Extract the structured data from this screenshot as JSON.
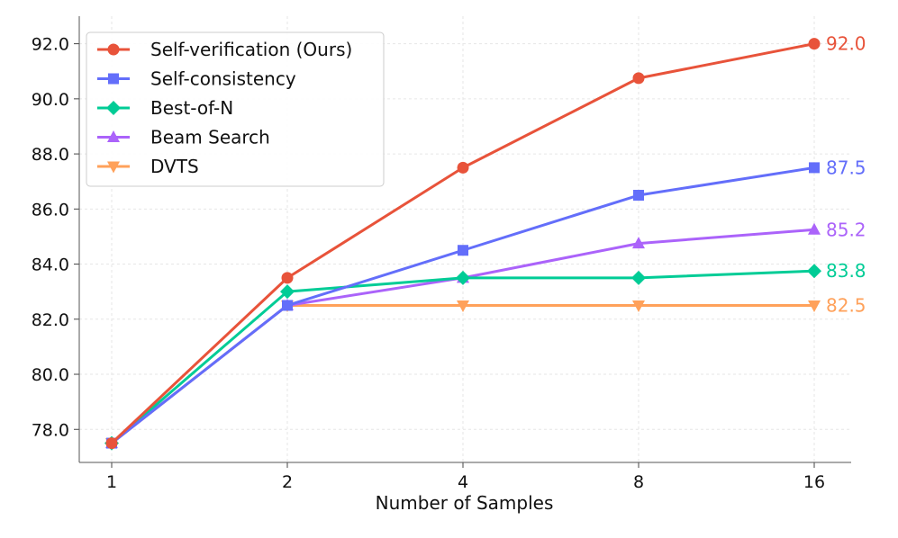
{
  "chart_data": {
    "type": "line",
    "title": "",
    "xlabel": "Number of Samples",
    "ylabel": "",
    "categories": [
      "1",
      "2",
      "4",
      "8",
      "16"
    ],
    "ylim": [
      76.8,
      93.0
    ],
    "yticks": [
      78.0,
      80.0,
      82.0,
      84.0,
      86.0,
      88.0,
      90.0,
      92.0
    ],
    "ytick_labels": [
      "78.0",
      "80.0",
      "82.0",
      "84.0",
      "86.0",
      "88.0",
      "90.0",
      "92.0"
    ],
    "grid": true,
    "legend_position": "top-left",
    "series": [
      {
        "name": "Self-verification (Ours)",
        "color": "#E8533A",
        "marker": "circle",
        "values": [
          77.5,
          83.5,
          87.5,
          90.75,
          92.0
        ],
        "end_label": "92.0"
      },
      {
        "name": "Self-consistency",
        "color": "#636EFA",
        "marker": "square",
        "values": [
          77.5,
          82.5,
          84.5,
          86.5,
          87.5
        ],
        "end_label": "87.5"
      },
      {
        "name": "Best-of-N",
        "color": "#00CC96",
        "marker": "diamond",
        "values": [
          77.5,
          83.0,
          83.5,
          83.5,
          83.75
        ],
        "end_label": "83.8"
      },
      {
        "name": "Beam Search",
        "color": "#AB63FA",
        "marker": "triangle-up",
        "values": [
          77.5,
          82.5,
          83.5,
          84.75,
          85.25
        ],
        "end_label": "85.2"
      },
      {
        "name": "DVTS",
        "color": "#FFA15A",
        "marker": "triangle-down",
        "values": [
          77.5,
          82.5,
          82.5,
          82.5,
          82.5
        ],
        "end_label": "82.5"
      }
    ]
  }
}
